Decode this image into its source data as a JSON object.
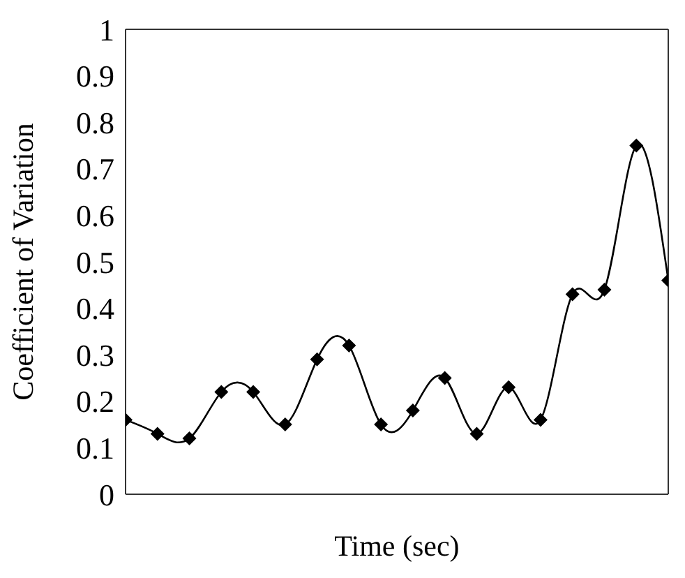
{
  "chart_data": {
    "type": "line",
    "xlabel": "Time (sec)",
    "ylabel": "Coefficient of Variation",
    "categories": [
      null,
      null,
      null,
      null,
      null,
      null,
      null,
      null,
      null,
      null,
      null,
      null,
      null,
      null,
      null,
      null,
      null,
      null
    ],
    "series": [
      {
        "color": "#000000",
        "values": [
          0.16,
          0.13,
          0.12,
          0.22,
          0.22,
          0.15,
          0.29,
          0.32,
          0.15,
          0.18,
          0.25,
          0.13,
          0.23,
          0.16,
          0.43,
          0.44,
          0.75,
          0.46
        ]
      }
    ],
    "ylim": [
      0,
      1
    ],
    "yticks": [
      0,
      0.1,
      0.2,
      0.3,
      0.4,
      0.5,
      0.6,
      0.7,
      0.8,
      0.9,
      1
    ],
    "grid": false,
    "legend": false,
    "marker": "diamond",
    "line_style": "solid"
  }
}
